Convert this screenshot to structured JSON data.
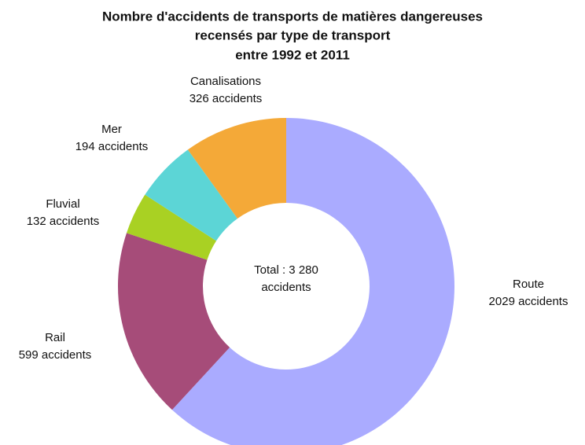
{
  "chart_data": {
    "type": "donut",
    "title": [
      "Nombre d'accidents de transports de matières dangereuses",
      "recensés par type de transport",
      "entre 1992 et 2011"
    ],
    "center_label": [
      "Total : 3 280",
      "accidents"
    ],
    "categories": [
      "Route",
      "Rail",
      "Fluvial",
      "Mer",
      "Canalisations"
    ],
    "values": [
      2029,
      599,
      132,
      194,
      326
    ],
    "value_labels": [
      "2029 accidents",
      "599 accidents",
      "132 accidents",
      "194 accidents",
      "326 accidents"
    ],
    "colors": [
      "#aaabff",
      "#a64c79",
      "#a9d123",
      "#5cd5d6",
      "#f4a938"
    ]
  }
}
